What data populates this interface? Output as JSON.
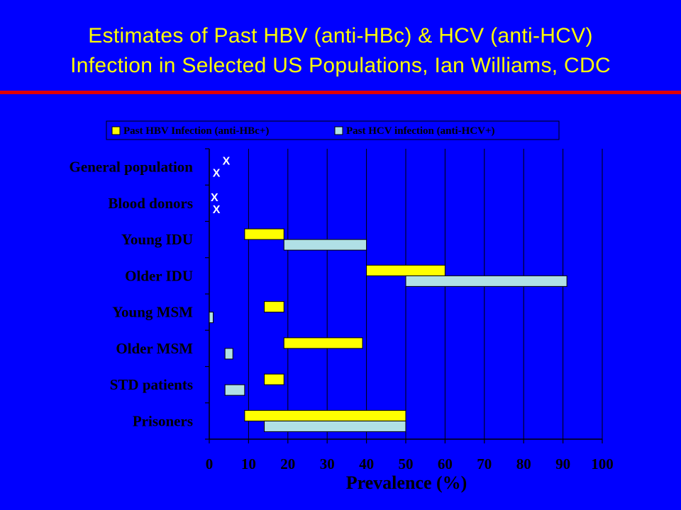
{
  "slide": {
    "title_line1": "Estimates of Past HBV (anti-HBc) & HCV (anti-HCV)",
    "title_line2": "Infection in Selected US Populations, Ian Williams, CDC"
  },
  "colors": {
    "background": "#0000ff",
    "title": "#ffff00",
    "rule": "#e00000",
    "hbv": "#ffff00",
    "hcv": "#b0e0e6"
  },
  "chart_data": {
    "type": "bar",
    "orientation": "horizontal-range",
    "xlabel": "Prevalence (%)",
    "xlim": [
      0,
      100
    ],
    "xticks": [
      0,
      10,
      20,
      30,
      40,
      50,
      60,
      70,
      80,
      90,
      100
    ],
    "grid": "vertical",
    "legend_position": "top",
    "categories": [
      "General population",
      "Blood donors",
      "Young IDU",
      "Older IDU",
      "Young MSM",
      "Older MSM",
      "STD patients",
      "Prisoners"
    ],
    "series": [
      {
        "name": "Past HBV Infection (anti-HBc+)",
        "color": "#ffff00",
        "ranges": [
          null,
          null,
          [
            9,
            19
          ],
          [
            40,
            60
          ],
          [
            14,
            19
          ],
          [
            19,
            39
          ],
          [
            14,
            19
          ],
          [
            9,
            50
          ]
        ]
      },
      {
        "name": "Past HCV infection (anti-HCV+)",
        "color": "#b0e0e6",
        "ranges": [
          null,
          null,
          [
            19,
            40
          ],
          [
            50,
            91
          ],
          [
            0,
            1
          ],
          [
            4,
            6
          ],
          [
            4,
            9
          ],
          [
            14,
            50
          ]
        ]
      }
    ],
    "point_markers": [
      {
        "category": "General population",
        "series": "Past HBV Infection (anti-HBc+)",
        "value": 3,
        "label": "X"
      },
      {
        "category": "General population",
        "series": "Past HCV infection (anti-HCV+)",
        "value": 0.5,
        "label": "X"
      },
      {
        "category": "Blood donors",
        "series": "Past HBV Infection (anti-HBc+)",
        "value": 0,
        "label": "X"
      },
      {
        "category": "Blood donors",
        "series": "Past HCV infection (anti-HCV+)",
        "value": 0.5,
        "label": "X"
      }
    ]
  }
}
